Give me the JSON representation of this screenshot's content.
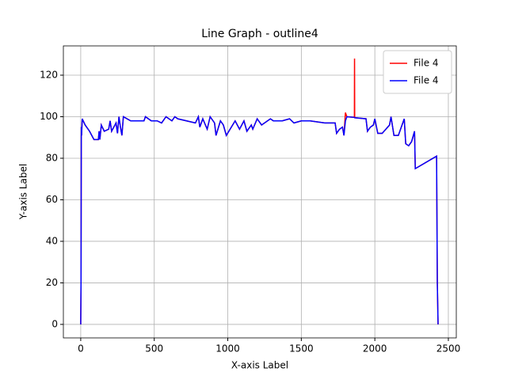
{
  "chart_data": {
    "type": "line",
    "title": "Line Graph - outline4",
    "x_label": "X-axis Label",
    "y_label": "Y-axis Label",
    "x": [
      0,
      2,
      4,
      6,
      10,
      30,
      60,
      90,
      120,
      125,
      130,
      140,
      160,
      190,
      200,
      210,
      240,
      250,
      260,
      270,
      280,
      290,
      340,
      430,
      440,
      480,
      520,
      550,
      580,
      620,
      640,
      660,
      780,
      800,
      810,
      830,
      860,
      880,
      910,
      920,
      950,
      970,
      990,
      1050,
      1080,
      1110,
      1130,
      1160,
      1170,
      1200,
      1230,
      1290,
      1310,
      1370,
      1420,
      1450,
      1500,
      1560,
      1660,
      1730,
      1740,
      1760,
      1780,
      1790,
      1800,
      1810,
      1861,
      1862,
      1863,
      1940,
      1950,
      1970,
      1990,
      2000,
      2020,
      2050,
      2100,
      2110,
      2130,
      2160,
      2190,
      2200,
      2210,
      2230,
      2250,
      2270,
      2275,
      2420,
      2425,
      2430
    ],
    "series": [
      {
        "name": "File 4",
        "color": "#ff0000",
        "values": [
          0,
          20,
          95,
          91,
          99,
          96,
          93,
          89,
          89,
          93,
          89,
          96,
          93,
          94,
          98,
          93,
          97,
          92,
          100,
          95,
          91,
          100,
          98,
          98,
          100,
          98,
          98,
          97,
          100,
          98,
          100,
          99,
          97,
          100,
          95,
          99,
          94,
          100,
          97,
          91,
          98,
          96,
          91,
          98,
          94,
          98,
          93,
          96,
          94,
          99,
          96,
          99,
          98,
          98,
          99,
          97,
          98,
          98,
          97,
          97,
          92,
          94,
          95,
          91,
          102,
          100,
          99.7,
          128,
          99.5,
          99,
          93,
          95,
          96,
          99,
          92,
          92,
          96,
          100,
          91,
          91,
          97,
          99,
          87,
          86,
          88,
          93,
          75,
          81,
          20,
          0
        ]
      },
      {
        "name": "File 4",
        "color": "#0000ff",
        "values": [
          0,
          20,
          95,
          91,
          99,
          96,
          93,
          89,
          89,
          93,
          89,
          96,
          93,
          94,
          98,
          93,
          97,
          92,
          100,
          95,
          91,
          100,
          98,
          98,
          100,
          98,
          98,
          97,
          100,
          98,
          100,
          99,
          97,
          100,
          95,
          99,
          94,
          100,
          97,
          91,
          98,
          96,
          91,
          98,
          94,
          98,
          93,
          96,
          94,
          99,
          96,
          99,
          98,
          98,
          99,
          97,
          98,
          98,
          97,
          97,
          92,
          94,
          95,
          91,
          98,
          100,
          99.7,
          99.6,
          99.5,
          99,
          93,
          95,
          96,
          99,
          92,
          92,
          96,
          100,
          91,
          91,
          97,
          99,
          87,
          86,
          88,
          93,
          75,
          81,
          20,
          0
        ]
      }
    ],
    "xlim": [
      -118,
      2554
    ],
    "ylim": [
      -6.5,
      134.1
    ],
    "xticks": [
      0,
      500,
      1000,
      1500,
      2000,
      2500
    ],
    "yticks": [
      0,
      20,
      40,
      60,
      80,
      100,
      120
    ],
    "grid": true,
    "legend": "upper right"
  }
}
